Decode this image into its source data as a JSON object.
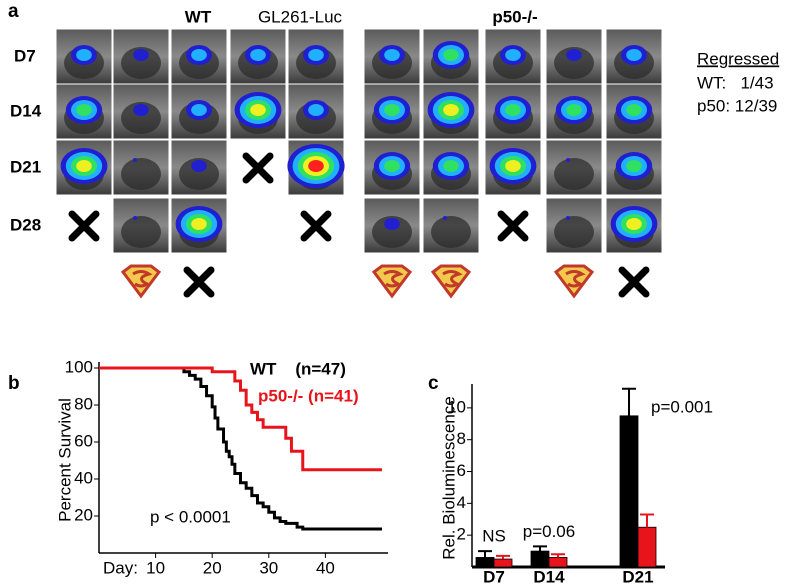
{
  "panel_a": {
    "label": "a",
    "wt": "WT",
    "cell_line": "GL261-Luc",
    "p50": "p50-/-",
    "rows": [
      "D7",
      "D14",
      "D21",
      "D28"
    ],
    "regressed_title": "Regressed",
    "regressed": [
      "WT:   1/43",
      "p50: 12/39"
    ]
  },
  "chart_data": [
    {
      "type": "line",
      "label": "b",
      "ylabel": "Percent Survival",
      "xlabel": "Day:",
      "annotation": "p < 0.0001",
      "xlim": [
        0,
        50
      ],
      "ylim": [
        0,
        100
      ],
      "xticks": [
        10,
        20,
        30,
        40
      ],
      "yticks": [
        20,
        40,
        60,
        80,
        100
      ],
      "step": true,
      "series": [
        {
          "name": "WT    (n=47)",
          "color": "#000000",
          "x": [
            0,
            15,
            16,
            17,
            18,
            19,
            20,
            20.5,
            21,
            22,
            22.5,
            23,
            23.5,
            24,
            25,
            26,
            27,
            28,
            29,
            30,
            31,
            32,
            33,
            35,
            36,
            50
          ],
          "values": [
            100,
            98,
            96,
            94,
            90,
            85,
            79,
            73,
            67,
            60,
            55,
            52,
            48,
            43,
            38,
            35,
            31,
            27,
            25,
            22,
            19,
            17,
            16,
            14,
            13,
            13
          ]
        },
        {
          "name": "p50-/- (n=41)",
          "color": "#e8141b",
          "x": [
            0,
            20,
            24,
            25,
            26,
            27,
            28,
            29,
            33,
            34,
            36,
            50
          ],
          "values": [
            100,
            98,
            93,
            88,
            80,
            76,
            72,
            68,
            62,
            55,
            45,
            45
          ]
        }
      ]
    },
    {
      "type": "bar",
      "label": "c",
      "ylabel": "Rel. Bioluminescence",
      "categories": [
        "D7",
        "D14",
        "D21"
      ],
      "annotations": [
        "NS",
        "p=0.06",
        "p=0.001"
      ],
      "ylim": [
        0,
        11.5
      ],
      "yticks": [
        2,
        4,
        6,
        8,
        10
      ],
      "series": [
        {
          "color": "#000000",
          "values": [
            0.6,
            1.0,
            9.5
          ],
          "errors": [
            0.4,
            0.3,
            1.7
          ]
        },
        {
          "color": "#e8141b",
          "values": [
            0.5,
            0.6,
            2.5
          ],
          "errors": [
            0.2,
            0.2,
            0.8
          ]
        }
      ]
    }
  ]
}
